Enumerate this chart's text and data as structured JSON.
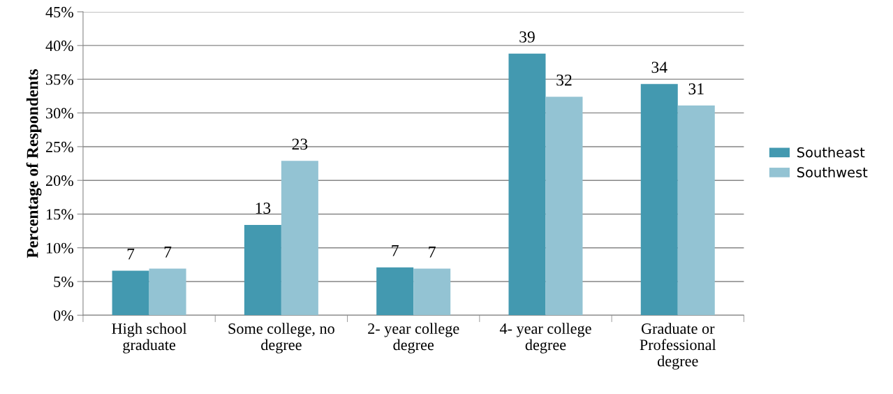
{
  "chart_data": {
    "type": "bar",
    "ylabel": "Percentage of Respondents",
    "categories": [
      "High school\ngraduate",
      "Some college, no\ndegree",
      "2- year college\ndegree",
      "4- year college\ndegree",
      "Graduate or\nProfessional\ndegree"
    ],
    "series": [
      {
        "name": "Southeast",
        "color": "#4399b0",
        "values": [
          6.6,
          13.4,
          7.1,
          38.8,
          34.3
        ],
        "value_labels": [
          "7",
          "13",
          "7",
          "39",
          "34"
        ]
      },
      {
        "name": "Southwest",
        "color": "#93c3d3",
        "values": [
          6.9,
          22.9,
          6.9,
          32.4,
          31.1
        ],
        "value_labels": [
          "7",
          "23",
          "7",
          "32",
          "31"
        ]
      }
    ],
    "ylim": [
      0,
      45
    ],
    "yticks": [
      {
        "value": 0,
        "label": "0%"
      },
      {
        "value": 5,
        "label": "5%"
      },
      {
        "value": 10,
        "label": "10%"
      },
      {
        "value": 15,
        "label": "15%"
      },
      {
        "value": 20,
        "label": "20%"
      },
      {
        "value": 25,
        "label": "25%"
      },
      {
        "value": 30,
        "label": "30%"
      },
      {
        "value": 35,
        "label": "35%"
      },
      {
        "value": 40,
        "label": "40%"
      },
      {
        "value": 45,
        "label": "45%"
      }
    ],
    "grid": "y",
    "legend": "right"
  }
}
